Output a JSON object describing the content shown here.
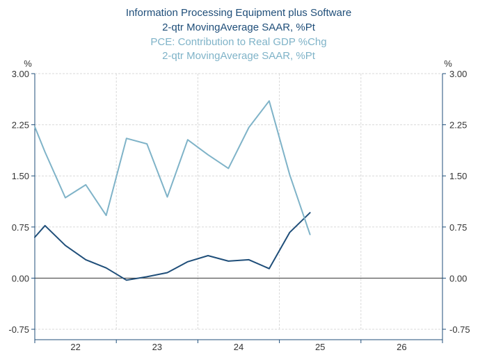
{
  "chart_data": {
    "type": "line",
    "title_lines": [
      "Information Processing Equipment plus Software",
      "2-qtr MovingAverage        SAAR, %Pt",
      "PCE: Contribution to Real GDP %Chg",
      "2-qtr MovingAverage      SAAR, %Pt"
    ],
    "title_colors": [
      "#1f4e79",
      "#1f4e79",
      "#7fb3c8",
      "#7fb3c8"
    ],
    "left_unit": "%",
    "right_unit": "%",
    "ylim": [
      -0.75,
      3.0
    ],
    "y_ticks": [
      3.0,
      2.25,
      1.5,
      0.75,
      0.0,
      -0.75
    ],
    "y_tick_labels": [
      "3.00",
      "2.25",
      "1.50",
      "0.75",
      "0.00",
      "-0.75"
    ],
    "xlim": [
      21.5,
      26.5
    ],
    "x_ticks": [
      22,
      23,
      24,
      25,
      26
    ],
    "x_tick_labels": [
      "22",
      "23",
      "24",
      "25",
      "26"
    ],
    "grid": true,
    "series": [
      {
        "name": "Information Processing Equipment plus Software",
        "color": "#1f4e79",
        "x": [
          21.5,
          21.625,
          21.875,
          22.125,
          22.375,
          22.625,
          22.875,
          23.125,
          23.375,
          23.625,
          23.875,
          24.125,
          24.375,
          24.625,
          24.875
        ],
        "values": [
          0.6,
          0.77,
          0.48,
          0.27,
          0.15,
          -0.03,
          0.02,
          0.08,
          0.24,
          0.33,
          0.25,
          0.27,
          0.14,
          0.67,
          0.96
        ]
      },
      {
        "name": "PCE: Contribution to Real GDP %Chg",
        "color": "#7fb3c8",
        "x": [
          21.5,
          21.625,
          21.875,
          22.125,
          22.375,
          22.625,
          22.875,
          23.125,
          23.375,
          23.625,
          23.875,
          24.125,
          24.375,
          24.625,
          24.875
        ],
        "values": [
          2.22,
          1.85,
          1.18,
          1.37,
          0.92,
          2.05,
          1.97,
          1.19,
          2.03,
          1.81,
          1.61,
          2.21,
          2.6,
          1.52,
          0.64
        ]
      }
    ]
  }
}
